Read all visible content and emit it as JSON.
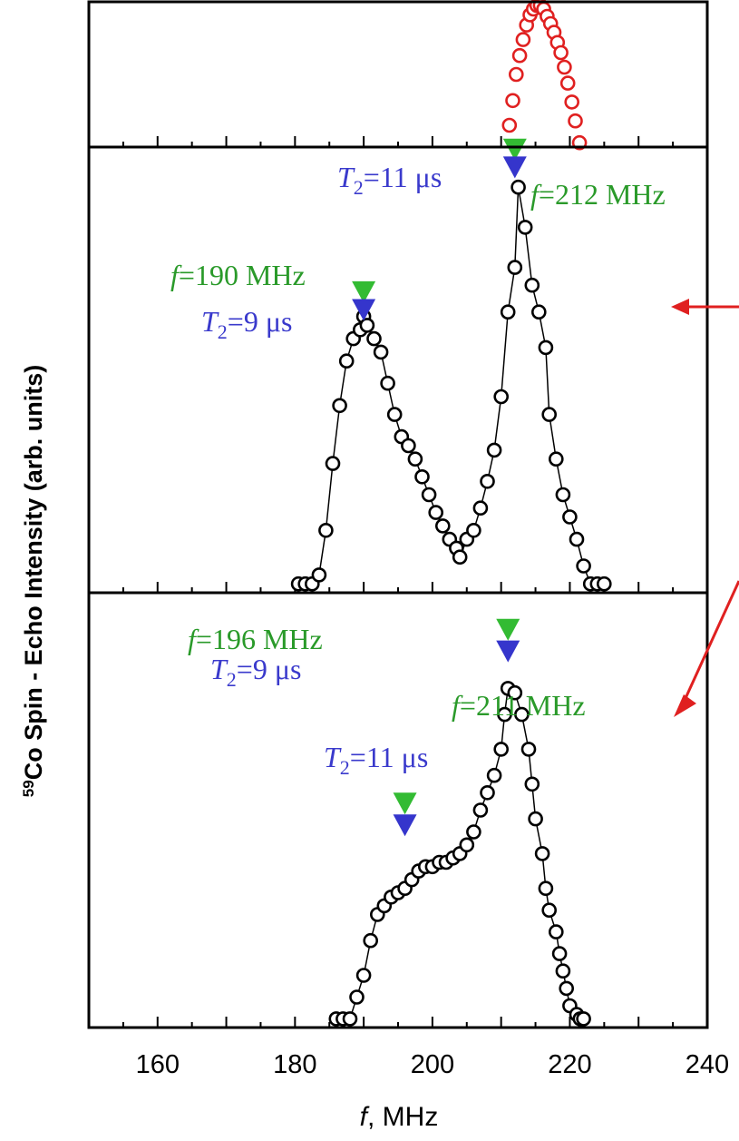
{
  "chart_data": {
    "type": "scatter",
    "xlabel": {
      "prefix": "f",
      "suffix": ", MHz"
    },
    "ylabel": {
      "sup": "59",
      "main": "Co Spin - Echo Intensity (arb. units)"
    },
    "xlim": [
      150,
      240
    ],
    "xticks": [
      160,
      180,
      200,
      220,
      240
    ],
    "panels": [
      {
        "series": [
          {
            "color": "#e02020",
            "line": false,
            "points": [
              [
                211.2,
                0.15
              ],
              [
                211.7,
                0.32
              ],
              [
                212.2,
                0.5
              ],
              [
                212.7,
                0.63
              ],
              [
                213.2,
                0.74
              ],
              [
                213.7,
                0.84
              ],
              [
                214.2,
                0.91
              ],
              [
                214.7,
                0.95
              ],
              [
                215.2,
                0.975
              ],
              [
                215.7,
                0.975
              ],
              [
                216.2,
                0.95
              ],
              [
                216.7,
                0.9
              ],
              [
                217.2,
                0.85
              ],
              [
                217.7,
                0.79
              ],
              [
                218.2,
                0.72
              ],
              [
                218.7,
                0.65
              ],
              [
                219.2,
                0.55
              ],
              [
                219.7,
                0.44
              ],
              [
                220.3,
                0.31
              ],
              [
                220.8,
                0.18
              ],
              [
                221.4,
                0.03
              ]
            ]
          }
        ]
      },
      {
        "series": [
          {
            "color": "#000000",
            "line": true,
            "points": [
              [
                180.5,
                0.02
              ],
              [
                181.5,
                0.02
              ],
              [
                182.5,
                0.02
              ],
              [
                183.5,
                0.04
              ],
              [
                184.5,
                0.14
              ],
              [
                185.5,
                0.29
              ],
              [
                186.5,
                0.42
              ],
              [
                187.5,
                0.52
              ],
              [
                188.5,
                0.57
              ],
              [
                189.5,
                0.59
              ],
              [
                190.0,
                0.62
              ],
              [
                190.5,
                0.6
              ],
              [
                191.5,
                0.57
              ],
              [
                192.5,
                0.54
              ],
              [
                193.5,
                0.47
              ],
              [
                194.5,
                0.4
              ],
              [
                195.5,
                0.35
              ],
              [
                196.5,
                0.33
              ],
              [
                197.5,
                0.3
              ],
              [
                198.5,
                0.26
              ],
              [
                199.5,
                0.22
              ],
              [
                200.5,
                0.18
              ],
              [
                201.5,
                0.15
              ],
              [
                202.5,
                0.12
              ],
              [
                203.5,
                0.1
              ],
              [
                204.0,
                0.08
              ],
              [
                205.0,
                0.12
              ],
              [
                206.0,
                0.14
              ],
              [
                207.0,
                0.19
              ],
              [
                208.0,
                0.25
              ],
              [
                209.0,
                0.32
              ],
              [
                210.0,
                0.44
              ],
              [
                211.0,
                0.63
              ],
              [
                212.0,
                0.73
              ],
              [
                212.5,
                0.91
              ],
              [
                213.5,
                0.82
              ],
              [
                214.5,
                0.69
              ],
              [
                215.5,
                0.63
              ],
              [
                216.5,
                0.55
              ],
              [
                217.0,
                0.4
              ],
              [
                218.0,
                0.3
              ],
              [
                219.0,
                0.22
              ],
              [
                220.0,
                0.17
              ],
              [
                221.0,
                0.12
              ],
              [
                222.0,
                0.06
              ],
              [
                223.0,
                0.02
              ],
              [
                224.0,
                0.02
              ],
              [
                225.0,
                0.02
              ]
            ]
          }
        ],
        "annotations": [
          {
            "kind": "marker",
            "color": "#33bb33",
            "x": 212,
            "y": 0.97
          },
          {
            "kind": "marker",
            "color": "#3535cc",
            "x": 212,
            "y": 0.93
          },
          {
            "kind": "marker",
            "color": "#33bb33",
            "x": 190,
            "y": 0.65
          },
          {
            "kind": "marker",
            "color": "#3535cc",
            "x": 190,
            "y": 0.61
          }
        ]
      },
      {
        "series": [
          {
            "color": "#000000",
            "line": true,
            "points": [
              [
                186.0,
                0.02
              ],
              [
                187.0,
                0.02
              ],
              [
                188.0,
                0.02
              ],
              [
                189.0,
                0.07
              ],
              [
                190.0,
                0.12
              ],
              [
                191.0,
                0.2
              ],
              [
                192.0,
                0.26
              ],
              [
                193.0,
                0.28
              ],
              [
                194.0,
                0.3
              ],
              [
                195.0,
                0.31
              ],
              [
                196.0,
                0.32
              ],
              [
                197.0,
                0.34
              ],
              [
                198.0,
                0.36
              ],
              [
                199.0,
                0.37
              ],
              [
                200.0,
                0.37
              ],
              [
                201.0,
                0.38
              ],
              [
                202.0,
                0.38
              ],
              [
                203.0,
                0.39
              ],
              [
                204.0,
                0.4
              ],
              [
                205.0,
                0.42
              ],
              [
                206.0,
                0.45
              ],
              [
                207.0,
                0.5
              ],
              [
                208.0,
                0.54
              ],
              [
                209.0,
                0.58
              ],
              [
                210.0,
                0.64
              ],
              [
                210.5,
                0.72
              ],
              [
                211.0,
                0.78
              ],
              [
                212.0,
                0.77
              ],
              [
                213.0,
                0.72
              ],
              [
                214.0,
                0.64
              ],
              [
                214.5,
                0.56
              ],
              [
                215.0,
                0.48
              ],
              [
                216.0,
                0.4
              ],
              [
                216.5,
                0.32
              ],
              [
                217.0,
                0.27
              ],
              [
                218.0,
                0.22
              ],
              [
                218.5,
                0.17
              ],
              [
                219.0,
                0.13
              ],
              [
                219.5,
                0.09
              ],
              [
                220.0,
                0.05
              ],
              [
                221.0,
                0.03
              ],
              [
                221.5,
                0.02
              ],
              [
                222.0,
                0.02
              ]
            ]
          }
        ],
        "annotations": [
          {
            "kind": "marker",
            "color": "#33bb33",
            "x": 211,
            "y": 0.89
          },
          {
            "kind": "marker",
            "color": "#3535cc",
            "x": 211,
            "y": 0.84
          },
          {
            "kind": "marker",
            "color": "#33bb33",
            "x": 196,
            "y": 0.49
          },
          {
            "kind": "marker",
            "color": "#3535cc",
            "x": 196,
            "y": 0.44
          }
        ]
      }
    ]
  },
  "annotations": {
    "top_peak": {
      "freq_var": "f",
      "freq_rest": "=212 MHz",
      "t2_var": "T",
      "t2_sub": "2",
      "t2_rest": "=11 μs"
    },
    "mid_peak_left": {
      "freq_var": "f",
      "freq_rest": "=190 MHz",
      "t2_var": "T",
      "t2_sub": "2",
      "t2_rest": "=9 μs"
    },
    "bottom_peak_right": {
      "freq_var": "f",
      "freq_rest": "=211 MHz",
      "t2_var": "T",
      "t2_sub": "2",
      "t2_rest": "=11 μs"
    },
    "bottom_peak_left": {
      "freq_var": "f",
      "freq_rest": "=196 MHz",
      "t2_var": "T",
      "t2_sub": "2",
      "t2_rest": "=9 μs"
    }
  },
  "colors": {
    "frame": "#000000",
    "arrow": "#e02020",
    "green": "#33bb33",
    "blue": "#3535cc"
  }
}
